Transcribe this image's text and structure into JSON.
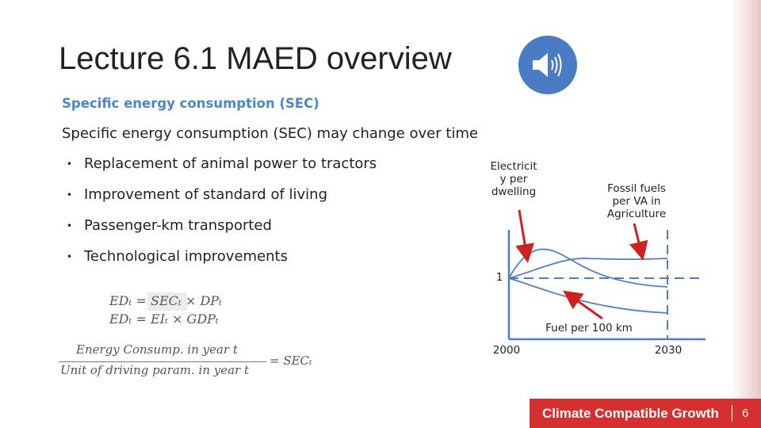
{
  "slide": {
    "title": "Lecture 6.1 MAED overview",
    "subheading": "Specific energy consumption (SEC)",
    "intro": "Specific energy consumption (SEC) may change over time",
    "bullet_marker": "•",
    "bullets": [
      "Replacement of animal power to tractors",
      "Improvement of standard of living",
      "Passenger-km transported",
      "Technological improvements"
    ],
    "equations": {
      "line1": "EDₜ = SECₜ × DPₜ",
      "line2": "EDₜ = EIₜ  × GDPₜ",
      "numerator": "Energy Consump. in year t",
      "denominator": "Unit of  driving param. in year t",
      "rhs": "= SECₜ"
    }
  },
  "diagram": {
    "label_electricity": "Electricit\ny per\ndwelling",
    "label_fossil": "Fossil fuels\nper VA in\nAgriculture",
    "label_fuel": "Fuel per 100 km",
    "label_one": "1",
    "label_start_year": "2000",
    "label_end_year": "2030",
    "line_color": "#4f7fc2",
    "arrow_color": "#cc2222"
  },
  "icons": {
    "speaker": "speaker-icon"
  },
  "footer": {
    "brand": "Climate Compatible Growth",
    "page_number": "6",
    "color": "#d62f2f"
  }
}
